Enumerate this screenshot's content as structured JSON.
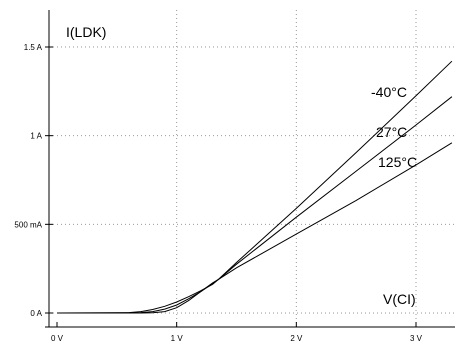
{
  "chart_data": {
    "type": "line",
    "ylabel": "I(LDK)",
    "xlabel": "V(CI)",
    "xlim": [
      0,
      3.3
    ],
    "ylim": [
      -0.05,
      1.65
    ],
    "grid": true,
    "x_ticks": [
      {
        "value": 0,
        "label": "0 V"
      },
      {
        "value": 1,
        "label": "1 V"
      },
      {
        "value": 2,
        "label": "2 V"
      },
      {
        "value": 3,
        "label": "3 V"
      }
    ],
    "y_ticks": [
      {
        "value": 0,
        "label": "0 A"
      },
      {
        "value": 0.5,
        "label": "500 mA"
      },
      {
        "value": 1,
        "label": "1 A"
      },
      {
        "value": 1.5,
        "label": "1.5 A"
      }
    ],
    "series": [
      {
        "name": "-40°C",
        "x": [
          0,
          0.6,
          0.7,
          0.8,
          0.9,
          1.0,
          1.1,
          1.2,
          1.3,
          1.35,
          1.5,
          2.0,
          2.5,
          3.0,
          3.3
        ],
        "y": [
          0,
          0,
          0,
          0.001,
          0.008,
          0.03,
          0.07,
          0.12,
          0.17,
          0.19,
          0.285,
          0.59,
          0.905,
          1.225,
          1.42
        ]
      },
      {
        "name": "27°C",
        "x": [
          0,
          0.6,
          0.7,
          0.8,
          0.9,
          1.0,
          1.1,
          1.2,
          1.3,
          1.35,
          1.5,
          2.0,
          2.5,
          3.0,
          3.3
        ],
        "y": [
          0,
          0,
          0.002,
          0.008,
          0.022,
          0.045,
          0.08,
          0.12,
          0.165,
          0.19,
          0.275,
          0.54,
          0.8,
          1.06,
          1.22
        ]
      },
      {
        "name": "125°C",
        "x": [
          0,
          0.6,
          0.7,
          0.8,
          0.9,
          1.0,
          1.1,
          1.2,
          1.3,
          1.35,
          1.5,
          2.0,
          2.5,
          3.0,
          3.3
        ],
        "y": [
          0,
          0.002,
          0.008,
          0.02,
          0.038,
          0.062,
          0.092,
          0.125,
          0.162,
          0.19,
          0.255,
          0.445,
          0.635,
          0.835,
          0.96
        ]
      }
    ],
    "annotations": [
      {
        "text": "-40°C",
        "series": 0
      },
      {
        "text": "27°C",
        "series": 1
      },
      {
        "text": "125°C",
        "series": 2
      }
    ]
  }
}
